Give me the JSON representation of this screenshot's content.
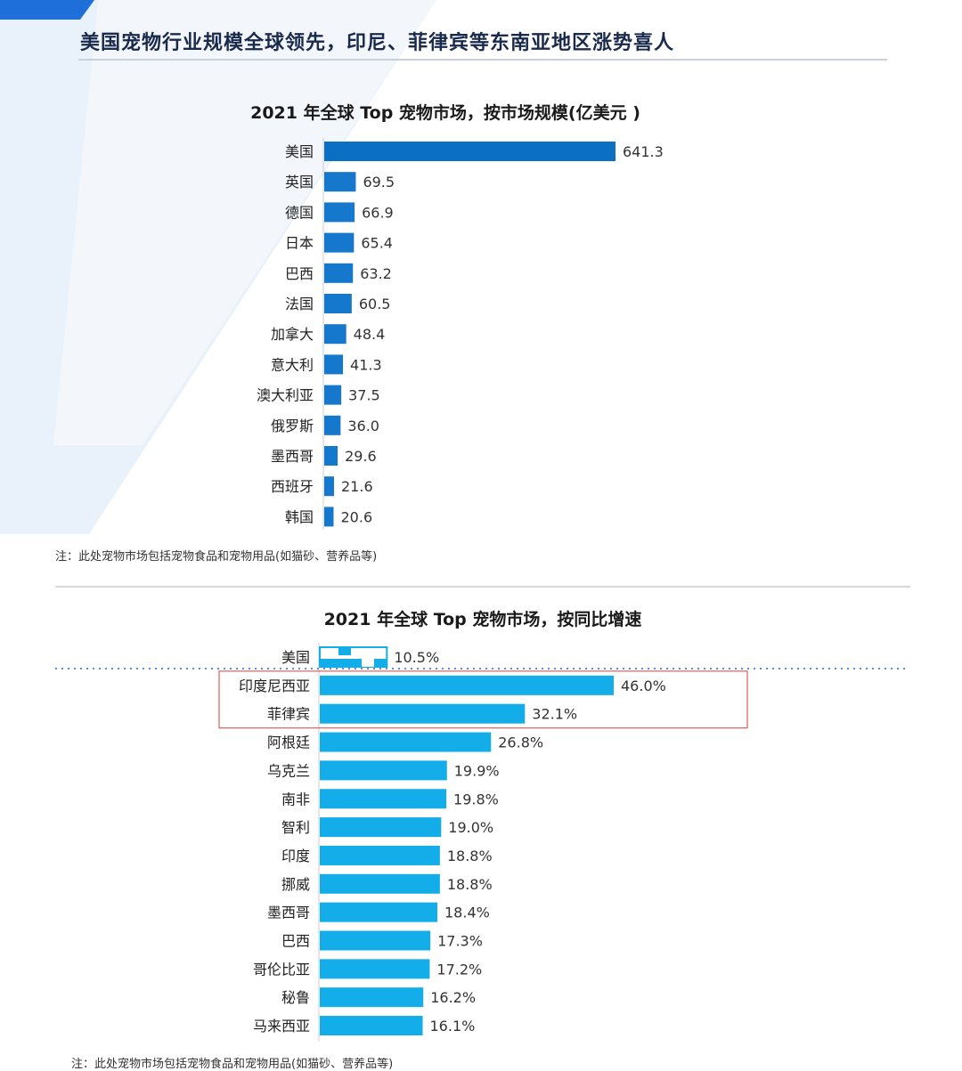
{
  "page": {
    "title": "美国宠物行业规模全球领先，印尼、菲律宾等东南亚地区涨势喜人"
  },
  "colors": {
    "bar_dark": "#0b6fc4",
    "bar_light": "#13aeea",
    "highlight_box": "#e35c5c",
    "dotted_line": "#5b8fd6",
    "swoosh": "#e9f1fa"
  },
  "chart_data": [
    {
      "type": "bar",
      "orientation": "horizontal",
      "title": "2021 年全球 Top 宠物市场，按市场规模(亿美元 )",
      "categories": [
        "美国",
        "英国",
        "德国",
        "日本",
        "巴西",
        "法国",
        "加拿大",
        "意大利",
        "澳大利亚",
        "俄罗斯",
        "墨西哥",
        "西班牙",
        "韩国"
      ],
      "values": [
        641.3,
        69.5,
        66.9,
        65.4,
        63.2,
        60.5,
        48.4,
        41.3,
        37.5,
        36.0,
        29.6,
        21.6,
        20.6
      ],
      "value_labels": [
        "641.3",
        "69.5",
        "66.9",
        "65.4",
        "63.2",
        "60.5",
        "48.4",
        "41.3",
        "37.5",
        "36.0",
        "29.6",
        "21.6",
        "20.6"
      ],
      "xlim": [
        0,
        641.3
      ],
      "note": "注：此处宠物市场包括宠物食品和宠物用品(如猫砂、营养品等)"
    },
    {
      "type": "bar",
      "orientation": "horizontal",
      "title": "2021 年全球 Top 宠物市场，按同比增速",
      "categories": [
        "美国",
        "印度尼西亚",
        "菲律宾",
        "阿根廷",
        "乌克兰",
        "南非",
        "智利",
        "印度",
        "挪威",
        "墨西哥",
        "巴西",
        "哥伦比亚",
        "秘鲁",
        "马来西亚"
      ],
      "values": [
        10.5,
        46.0,
        32.1,
        26.8,
        19.9,
        19.8,
        19.0,
        18.8,
        18.8,
        18.4,
        17.3,
        17.2,
        16.2,
        16.1
      ],
      "value_labels": [
        "10.5%",
        "46.0%",
        "32.1%",
        "26.8%",
        "19.9%",
        "19.8%",
        "19.0%",
        "18.8%",
        "18.8%",
        "18.4%",
        "17.3%",
        "17.2%",
        "16.2%",
        "16.1%"
      ],
      "xlim": [
        0,
        46.0
      ],
      "highlighted": [
        "印度尼西亚",
        "菲律宾"
      ],
      "note": "注：此处宠物市场包括宠物食品和宠物用品(如猫砂、营养品等)"
    }
  ]
}
